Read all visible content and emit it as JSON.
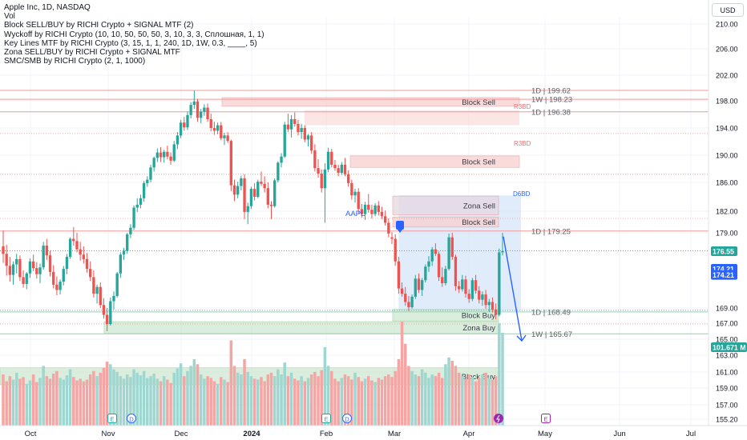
{
  "legend": {
    "symbol_line": "Apple Inc, 1D, NASDAQ",
    "lines": [
      "Vol",
      "Block SELL/BUY by RICHI Crypto + SIGNAL MTF (2)",
      "Wyckoff by RICHI Crypto  (10, 10, 50, 50, 50, 3, 10, 3, 3, Сплошная, 1, 1)",
      "Key Lines MTF by RICHI Crypto (3, 15, 1, 1, 240, 1D, 1W, 0.3, ____, 5)",
      "Zona SELL/BUY by RICHI Crypto + SIGNAL MTF",
      "SMC/SMB by RICHI Crypto (2, 1, 1000)"
    ]
  },
  "currency_button": "USD",
  "colors": {
    "up": "#26a69a",
    "down": "#ef5350",
    "vol_up": "#9fd6cf",
    "vol_down": "#f5a6a4",
    "sell_zone": "#f8cfcf",
    "buy_zone": "#cfe9d2",
    "zona_sell": "#e6d8e2",
    "projection": "#c9dcf7",
    "arrow": "#2962ff",
    "price_tag": "#26a69a",
    "blue_tag": "#2962ff"
  },
  "chart_data": {
    "type": "candlestick",
    "y_axis": {
      "ticks": [
        210,
        206,
        202,
        198,
        194,
        190,
        186,
        182,
        179,
        176,
        173,
        171,
        169,
        167,
        165,
        163,
        161,
        159,
        157,
        155.2
      ],
      "tick_labels": [
        "210.00",
        "206.00",
        "202.00",
        "198.00",
        "194.00",
        "190.00",
        "186.00",
        "182.00",
        "179.00",
        "",
        "",
        "",
        "169.00",
        "167.00",
        "165.00",
        "163.00",
        "161.00",
        "159.00",
        "157.00",
        "155.20"
      ]
    },
    "x_axis": {
      "labels": [
        "Oct",
        "Nov",
        "Dec",
        "2024",
        "Feb",
        "Mar",
        "Apr",
        "May",
        "Jun",
        "Jul"
      ]
    },
    "price_tags": [
      {
        "value": 176.55,
        "label": "176.55",
        "kind": "price"
      },
      {
        "value": 174.21,
        "label": "174.21",
        "kind": "blue"
      },
      {
        "value": 173.4,
        "label": "174.21",
        "kind": "blue"
      },
      {
        "value": 165.1,
        "label": "101.671 M",
        "kind": "volume"
      }
    ],
    "key_lines": [
      {
        "label": "1D | 199.62",
        "value": 199.62
      },
      {
        "label": "1W | 198.23",
        "value": 198.23
      },
      {
        "label": "1D | 196.38",
        "value": 196.38
      },
      {
        "label": "1D | 179.25",
        "value": 179.25
      },
      {
        "label": "1D | 168.49",
        "value": 168.49
      },
      {
        "label": "1W | 165.67",
        "value": 165.67
      }
    ],
    "zones": [
      {
        "label": "Block Sell",
        "top": 198.5,
        "bottom": 197.2
      },
      {
        "label": "Block Sell",
        "top": 189.9,
        "bottom": 188.2
      },
      {
        "label": "Zona Sell",
        "top": 184.1,
        "bottom": 181.5
      },
      {
        "label": "Block Sell",
        "top": 181.2,
        "bottom": 179.8
      },
      {
        "label": "Block Buy",
        "top": 168.8,
        "bottom": 167.3
      },
      {
        "label": "Zona Buy",
        "top": 167.2,
        "bottom": 165.7
      },
      {
        "label": "Block Buy",
        "top": 161.5,
        "bottom": 159.4
      }
    ],
    "annotations": [
      "R3BD",
      "R3BD",
      "D6BD",
      "AAPL"
    ],
    "volume_last": "101.671 M",
    "candles": [
      [
        177.2,
        179.3,
        175.0,
        176.2
      ],
      [
        176.2,
        177.4,
        173.3,
        174.6
      ],
      [
        174.6,
        175.8,
        172.5,
        173.4
      ],
      [
        173.4,
        175.2,
        172.1,
        174.8
      ],
      [
        174.8,
        176.2,
        173.6,
        175.5
      ],
      [
        175.5,
        176.0,
        172.6,
        173.1
      ],
      [
        173.1,
        174.0,
        171.7,
        172.2
      ],
      [
        172.2,
        173.8,
        171.5,
        173.6
      ],
      [
        173.6,
        175.6,
        173.0,
        175.2
      ],
      [
        175.2,
        176.1,
        173.9,
        174.3
      ],
      [
        174.3,
        175.1,
        172.9,
        173.5
      ],
      [
        173.5,
        174.9,
        172.3,
        174.4
      ],
      [
        174.4,
        177.8,
        174.1,
        177.3
      ],
      [
        177.3,
        178.2,
        175.4,
        176.0
      ],
      [
        176.0,
        176.6,
        173.2,
        173.8
      ],
      [
        173.8,
        174.7,
        171.6,
        172.1
      ],
      [
        172.1,
        173.2,
        170.7,
        171.4
      ],
      [
        171.4,
        172.8,
        170.8,
        172.5
      ],
      [
        172.5,
        174.6,
        172.0,
        174.2
      ],
      [
        174.2,
        176.2,
        173.5,
        175.8
      ],
      [
        175.8,
        178.4,
        175.5,
        178.2
      ],
      [
        178.2,
        179.8,
        177.3,
        177.9
      ],
      [
        177.9,
        179.0,
        176.4,
        176.8
      ],
      [
        176.8,
        177.8,
        175.3,
        176.1
      ],
      [
        176.1,
        177.2,
        174.9,
        175.5
      ],
      [
        175.5,
        176.3,
        173.7,
        174.2
      ],
      [
        174.2,
        175.2,
        172.6,
        173.1
      ],
      [
        173.1,
        174.0,
        170.4,
        170.9
      ],
      [
        170.9,
        172.1,
        169.6,
        171.8
      ],
      [
        171.8,
        172.4,
        169.0,
        169.4
      ],
      [
        169.4,
        170.3,
        167.6,
        168.1
      ],
      [
        168.1,
        169.0,
        166.0,
        166.9
      ],
      [
        166.9,
        170.4,
        166.7,
        169.9
      ],
      [
        169.9,
        171.2,
        168.8,
        170.6
      ],
      [
        170.6,
        173.8,
        170.4,
        173.6
      ],
      [
        173.6,
        176.4,
        173.0,
        176.1
      ],
      [
        176.1,
        177.0,
        175.4,
        176.6
      ],
      [
        176.6,
        179.0,
        176.2,
        178.8
      ],
      [
        178.8,
        180.2,
        178.3,
        179.7
      ],
      [
        179.7,
        182.8,
        179.4,
        182.5
      ],
      [
        182.5,
        183.8,
        181.9,
        182.9
      ],
      [
        182.9,
        184.3,
        182.4,
        183.8
      ],
      [
        183.8,
        186.2,
        183.3,
        185.9
      ],
      [
        185.9,
        186.9,
        185.4,
        186.4
      ],
      [
        186.4,
        188.6,
        186.0,
        188.2
      ],
      [
        188.2,
        189.8,
        187.6,
        189.6
      ],
      [
        189.6,
        191.0,
        189.0,
        190.4
      ],
      [
        190.4,
        191.2,
        189.0,
        189.7
      ],
      [
        189.7,
        190.8,
        188.9,
        190.5
      ],
      [
        190.5,
        191.4,
        189.4,
        189.8
      ],
      [
        189.8,
        190.4,
        188.6,
        189.2
      ],
      [
        189.2,
        192.1,
        189.0,
        191.6
      ],
      [
        191.6,
        193.4,
        190.9,
        192.9
      ],
      [
        192.9,
        195.2,
        192.5,
        194.8
      ],
      [
        194.8,
        195.6,
        193.6,
        194.1
      ],
      [
        194.1,
        196.4,
        193.7,
        195.9
      ],
      [
        195.9,
        197.8,
        195.4,
        197.4
      ],
      [
        197.4,
        199.6,
        196.8,
        197.9
      ],
      [
        197.9,
        198.3,
        194.9,
        195.5
      ],
      [
        195.5,
        196.8,
        194.7,
        196.4
      ],
      [
        196.4,
        197.5,
        195.8,
        197.0
      ],
      [
        197.0,
        197.6,
        194.9,
        195.3
      ],
      [
        195.3,
        196.1,
        193.5,
        194.0
      ],
      [
        194.0,
        194.9,
        193.0,
        193.6
      ],
      [
        193.6,
        194.8,
        193.1,
        194.4
      ],
      [
        194.4,
        194.9,
        192.2,
        192.5
      ],
      [
        192.5,
        193.3,
        191.5,
        192.9
      ],
      [
        192.9,
        193.4,
        191.8,
        192.1
      ],
      [
        192.1,
        192.3,
        184.8,
        185.6
      ],
      [
        185.6,
        186.4,
        183.4,
        184.3
      ],
      [
        184.3,
        186.1,
        183.8,
        185.5
      ],
      [
        185.5,
        187.0,
        184.9,
        186.6
      ],
      [
        186.6,
        187.2,
        180.9,
        181.9
      ],
      [
        181.9,
        183.2,
        180.2,
        182.7
      ],
      [
        182.7,
        185.4,
        182.3,
        185.1
      ],
      [
        185.1,
        185.9,
        183.5,
        184.0
      ],
      [
        184.0,
        186.4,
        183.8,
        186.1
      ],
      [
        186.1,
        187.6,
        185.5,
        185.8
      ],
      [
        185.8,
        186.9,
        184.6,
        185.2
      ],
      [
        185.2,
        186.0,
        182.4,
        182.9
      ],
      [
        182.9,
        183.4,
        180.9,
        182.7
      ],
      [
        182.7,
        186.6,
        182.5,
        186.3
      ],
      [
        186.3,
        189.1,
        186.0,
        188.9
      ],
      [
        188.9,
        190.3,
        188.2,
        189.8
      ],
      [
        189.8,
        194.9,
        189.6,
        194.5
      ],
      [
        194.5,
        196.1,
        193.4,
        193.8
      ],
      [
        193.8,
        195.9,
        192.6,
        195.3
      ],
      [
        195.3,
        196.3,
        194.2,
        194.6
      ],
      [
        194.6,
        195.2,
        192.9,
        193.4
      ],
      [
        193.4,
        194.6,
        192.4,
        194.0
      ],
      [
        194.0,
        194.4,
        191.9,
        192.3
      ],
      [
        192.3,
        193.1,
        191.3,
        192.9
      ],
      [
        192.9,
        193.4,
        190.2,
        190.7
      ],
      [
        190.7,
        191.6,
        187.6,
        188.1
      ],
      [
        188.1,
        189.4,
        186.7,
        187.3
      ],
      [
        187.3,
        187.9,
        184.6,
        185.2
      ],
      [
        185.2,
        188.8,
        180.4,
        187.9
      ],
      [
        187.9,
        191.1,
        187.5,
        190.5
      ],
      [
        190.5,
        190.9,
        188.2,
        188.6
      ],
      [
        188.6,
        189.3,
        187.7,
        188.1
      ],
      [
        188.1,
        188.6,
        186.9,
        187.4
      ],
      [
        187.4,
        189.0,
        187.1,
        188.6
      ],
      [
        188.6,
        189.6,
        186.9,
        187.2
      ],
      [
        187.2,
        187.8,
        185.4,
        185.9
      ],
      [
        185.9,
        186.4,
        183.6,
        184.2
      ],
      [
        184.2,
        185.1,
        183.2,
        184.7
      ],
      [
        184.7,
        185.2,
        181.6,
        182.3
      ],
      [
        182.3,
        183.0,
        181.1,
        181.6
      ],
      [
        181.6,
        183.3,
        180.8,
        182.9
      ],
      [
        182.9,
        184.4,
        181.8,
        182.2
      ],
      [
        182.2,
        182.9,
        181.0,
        181.6
      ],
      [
        181.6,
        183.1,
        181.3,
        182.8
      ],
      [
        182.8,
        183.4,
        181.4,
        181.9
      ],
      [
        181.9,
        182.6,
        180.9,
        181.3
      ],
      [
        181.3,
        182.1,
        180.0,
        180.4
      ],
      [
        180.4,
        181.0,
        178.4,
        178.9
      ],
      [
        178.4,
        179.1,
        177.5,
        178.2
      ],
      [
        178.2,
        178.8,
        174.6,
        175.2
      ],
      [
        175.2,
        175.8,
        170.9,
        171.6
      ],
      [
        171.6,
        172.4,
        170.5,
        170.9
      ],
      [
        170.9,
        171.8,
        169.3,
        169.8
      ],
      [
        169.8,
        170.6,
        168.6,
        169.1
      ],
      [
        169.1,
        170.8,
        168.9,
        170.5
      ],
      [
        170.5,
        173.4,
        170.2,
        172.9
      ],
      [
        172.9,
        173.6,
        171.0,
        171.4
      ],
      [
        171.4,
        173.0,
        170.6,
        172.7
      ],
      [
        172.7,
        174.8,
        172.4,
        174.5
      ],
      [
        174.5,
        175.9,
        173.8,
        175.2
      ],
      [
        175.2,
        177.1,
        174.6,
        176.8
      ],
      [
        176.8,
        177.6,
        175.9,
        176.2
      ],
      [
        176.2,
        176.5,
        172.6,
        173.1
      ],
      [
        173.1,
        174.4,
        171.8,
        172.3
      ],
      [
        172.3,
        174.6,
        172.0,
        174.2
      ],
      [
        174.2,
        178.9,
        174.0,
        178.4
      ],
      [
        178.4,
        179.0,
        175.4,
        175.8
      ],
      [
        175.8,
        176.1,
        171.3,
        171.9
      ],
      [
        171.9,
        172.6,
        171.0,
        171.5
      ],
      [
        171.5,
        173.4,
        171.2,
        172.8
      ],
      [
        172.8,
        173.3,
        170.4,
        170.9
      ],
      [
        170.9,
        171.5,
        169.7,
        170.2
      ],
      [
        170.2,
        173.0,
        169.9,
        172.7
      ],
      [
        172.7,
        173.4,
        170.9,
        171.3
      ],
      [
        171.3,
        171.9,
        169.6,
        170.1
      ],
      [
        170.1,
        171.2,
        169.3,
        170.8
      ],
      [
        170.8,
        171.4,
        168.9,
        169.4
      ],
      [
        169.4,
        170.2,
        168.5,
        169.8
      ],
      [
        169.8,
        170.4,
        168.4,
        168.8
      ],
      [
        168.8,
        169.6,
        167.5,
        168.1
      ],
      [
        168.1,
        176.9,
        167.9,
        176.4
      ],
      [
        176.4,
        179.0,
        176.0,
        176.55
      ]
    ],
    "volumes": [
      60,
      52,
      58,
      54,
      62,
      55,
      57,
      49,
      53,
      60,
      51,
      56,
      70,
      58,
      55,
      61,
      64,
      56,
      54,
      59,
      66,
      57,
      53,
      55,
      52,
      54,
      60,
      64,
      58,
      62,
      68,
      75,
      72,
      66,
      63,
      58,
      55,
      60,
      57,
      66,
      62,
      59,
      64,
      56,
      58,
      61,
      55,
      52,
      58,
      54,
      50,
      62,
      67,
      73,
      58,
      64,
      70,
      78,
      72,
      60,
      55,
      58,
      56,
      52,
      49,
      57,
      54,
      51,
      100,
      70,
      62,
      60,
      78,
      63,
      58,
      55,
      54,
      57,
      52,
      60,
      62,
      58,
      66,
      60,
      74,
      58,
      62,
      55,
      53,
      58,
      52,
      56,
      60,
      63,
      58,
      65,
      92,
      70,
      64,
      55,
      52,
      56,
      60,
      58,
      54,
      62,
      57,
      52,
      55,
      58,
      53,
      51,
      56,
      54,
      58,
      60,
      57,
      64,
      78,
      122,
      96,
      70,
      64,
      60,
      58,
      66,
      62,
      56,
      60,
      58,
      62,
      56,
      72,
      80,
      76,
      70,
      62,
      58,
      55,
      60,
      57,
      52,
      56,
      60,
      62,
      56,
      54,
      58,
      120,
      109
    ]
  }
}
